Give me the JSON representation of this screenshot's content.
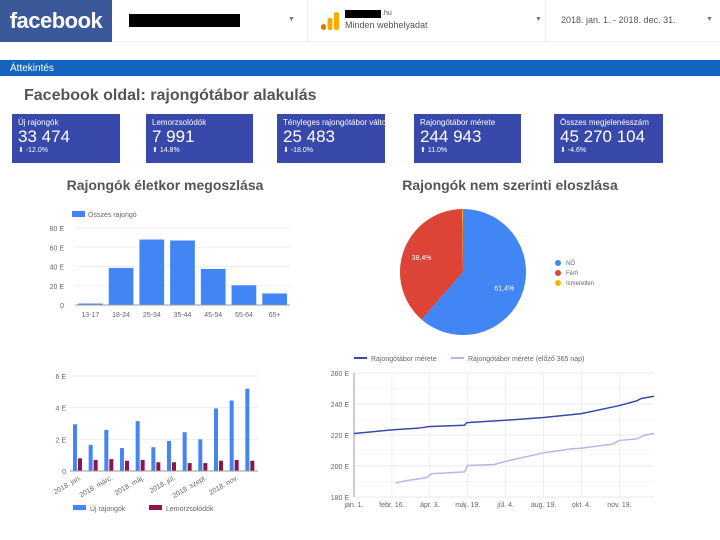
{
  "header": {
    "logo": "facebook",
    "site_suffix": ".hu",
    "site_sub": "Minden webhelyadat",
    "date_range": "2018. jan. 1. - 2018. dec. 31."
  },
  "section": "Áttekintés",
  "page_title": "Facebook oldal: rajongótábor alakulás",
  "cards": [
    {
      "label": "Új rajongók",
      "value": "33 474",
      "delta": "-12.0%",
      "dir": "down"
    },
    {
      "label": "Lemorzsolódók",
      "value": "7 991",
      "delta": "14.8%",
      "dir": "up"
    },
    {
      "label": "Tényleges rajongótábor változás",
      "value": "25 483",
      "delta": "-18.0%",
      "dir": "down"
    },
    {
      "label": "Rajongótábor mérete",
      "value": "244 943",
      "delta": "11.0%",
      "dir": "up"
    },
    {
      "label": "Összes megjelenésszám",
      "value": "45 270 104",
      "delta": "-4.6%",
      "dir": "down"
    }
  ],
  "colors": {
    "card": "#3949ab",
    "blue": "#4285f4",
    "maroon": "#8e1450",
    "red": "#db4437",
    "yellow": "#f4b400",
    "line1": "#3949ab",
    "line2": "#b4b9e8"
  },
  "chart_data": [
    {
      "type": "bar",
      "title": "Rajongók életkor megoszlása",
      "legend": "top-left",
      "categories": [
        "13-17",
        "18-24",
        "25-34",
        "35-44",
        "45-54",
        "55-64",
        "65+"
      ],
      "series": [
        {
          "name": "Összes rajongó",
          "values": [
            1.5,
            38.5,
            68,
            67,
            37.5,
            20.5,
            12
          ]
        }
      ],
      "ylim": [
        0,
        80
      ],
      "yticks": [
        "0",
        "20 E",
        "40 E",
        "60 E",
        "80 E"
      ],
      "grid": true
    },
    {
      "type": "pie",
      "title": "Rajongók nem szerinti eloszlása",
      "legend": "right",
      "labels": [
        "NŐ",
        "Férfi",
        "Ismeretlen"
      ],
      "values": [
        61.4,
        38.4,
        0.2
      ],
      "data_labels": [
        "61,4%",
        "38,4%",
        ""
      ]
    },
    {
      "type": "bar",
      "legend": "bottom",
      "x_tick_labels": [
        "2018. jan.",
        "2018. márc.",
        "2018. máj.",
        "2018. júl.",
        "2018. szept.",
        "2018. nov."
      ],
      "series": [
        {
          "name": "Új rajongók",
          "values": [
            2.95,
            1.65,
            2.6,
            1.45,
            3.15,
            1.5,
            1.9,
            2.45,
            2.0,
            3.95,
            4.45,
            5.2
          ]
        },
        {
          "name": "Lemorzsolódók",
          "values": [
            0.8,
            0.7,
            0.75,
            0.65,
            0.7,
            0.55,
            0.55,
            0.5,
            0.5,
            0.65,
            0.7,
            0.65
          ]
        }
      ],
      "ylim": [
        0,
        6
      ],
      "yticks": [
        "0",
        "2 E",
        "4 E",
        "6 E"
      ],
      "grid": true
    },
    {
      "type": "line",
      "legend": "top",
      "x_tick_labels": [
        "jan. 1.",
        "febr. 16.",
        "ápr. 3.",
        "máj. 19.",
        "júl. 4.",
        "aug. 19.",
        "okt. 4.",
        "nov. 19."
      ],
      "x_tick_dates": [
        "2018-01-01",
        "2018-02-16",
        "2018-04-03",
        "2018-05-19",
        "2018-07-04",
        "2018-08-19",
        "2018-10-04",
        "2018-11-19"
      ],
      "xlim": [
        "2018-01-01",
        "2018-12-31"
      ],
      "series": [
        {
          "name": "Rajongótábor mérete",
          "x": [
            "2018-01-01",
            "2018-02-16",
            "2018-03-20",
            "2018-04-03",
            "2018-05-15",
            "2018-05-18",
            "2018-07-04",
            "2018-08-19",
            "2018-10-04",
            "2018-11-19",
            "2018-12-10",
            "2018-12-15",
            "2018-12-31"
          ],
          "y": [
            221,
            223.3,
            224.4,
            225.5,
            226.3,
            228,
            229.5,
            231.3,
            233.8,
            239,
            242,
            243.5,
            245
          ]
        },
        {
          "name": "Rajongótábor mérete (előző 365 nap)",
          "x": [
            "2018-02-20",
            "2018-03-05",
            "2018-03-30",
            "2018-04-05",
            "2018-05-15",
            "2018-05-19",
            "2018-06-20",
            "2018-07-04",
            "2018-08-19",
            "2018-09-20",
            "2018-10-04",
            "2018-11-10",
            "2018-11-19",
            "2018-12-10",
            "2018-12-20",
            "2018-12-31"
          ],
          "y": [
            189,
            190.5,
            192.5,
            195,
            196.2,
            200.3,
            201,
            203,
            208.5,
            211,
            211.5,
            214,
            216.5,
            217.5,
            220,
            221
          ]
        }
      ],
      "ylim": [
        180,
        260
      ],
      "yticks": [
        "180 E",
        "200 E",
        "220 E",
        "240 E",
        "260 E"
      ],
      "grid": true
    }
  ]
}
